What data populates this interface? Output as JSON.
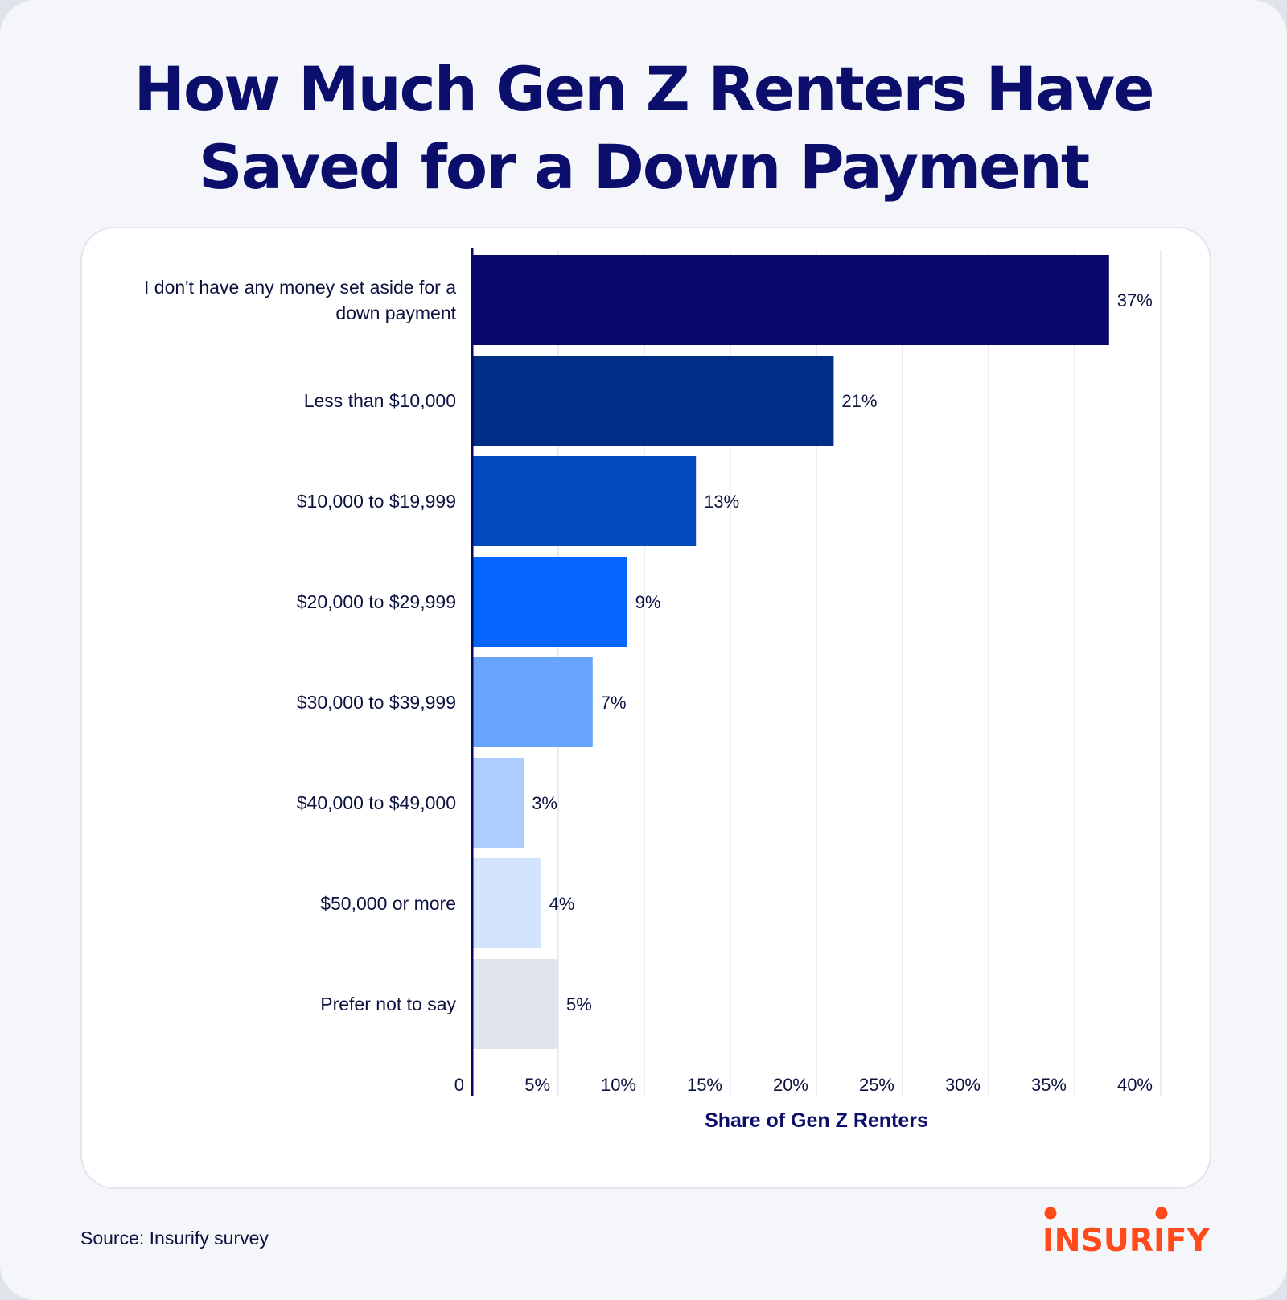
{
  "title_line1": "How Much Gen Z Renters Have",
  "title_line2": "Saved for a Down Payment",
  "source": "Source: Insurify survey",
  "logo_text": "INSURIFY",
  "colors": {
    "title": "#0b0f6b",
    "axis": "#07095f",
    "grid": "#e2e5ee",
    "logo": "#ff4a1c"
  },
  "chart_data": {
    "type": "bar",
    "orientation": "horizontal",
    "categories": [
      [
        "I don't have any money set aside for a",
        "down payment"
      ],
      [
        "Less than $10,000"
      ],
      [
        "$10,000 to $19,999"
      ],
      [
        "$20,000 to $29,999"
      ],
      [
        "$30,000 to $39,999"
      ],
      [
        "$40,000 to $49,000"
      ],
      [
        "$50,000 or more"
      ],
      [
        "Prefer not to say"
      ]
    ],
    "values": [
      37,
      21,
      13,
      9,
      7,
      3,
      4,
      5
    ],
    "value_labels": [
      "37%",
      "21%",
      "13%",
      "9%",
      "7%",
      "3%",
      "4%",
      "5%"
    ],
    "bar_colors": [
      "#07066b",
      "#022d87",
      "#034bbd",
      "#0466fd",
      "#66a4fd",
      "#adcdfd",
      "#d3e4fe",
      "#dfe4ee"
    ],
    "xlabel": "Share of Gen Z Renters",
    "xlim": [
      0,
      40
    ],
    "x_ticks": [
      0,
      5,
      10,
      15,
      20,
      25,
      30,
      35,
      40
    ],
    "x_tick_labels": [
      "0",
      "5%",
      "10%",
      "15%",
      "20%",
      "25%",
      "30%",
      "35%",
      "40%"
    ],
    "grid": true
  }
}
